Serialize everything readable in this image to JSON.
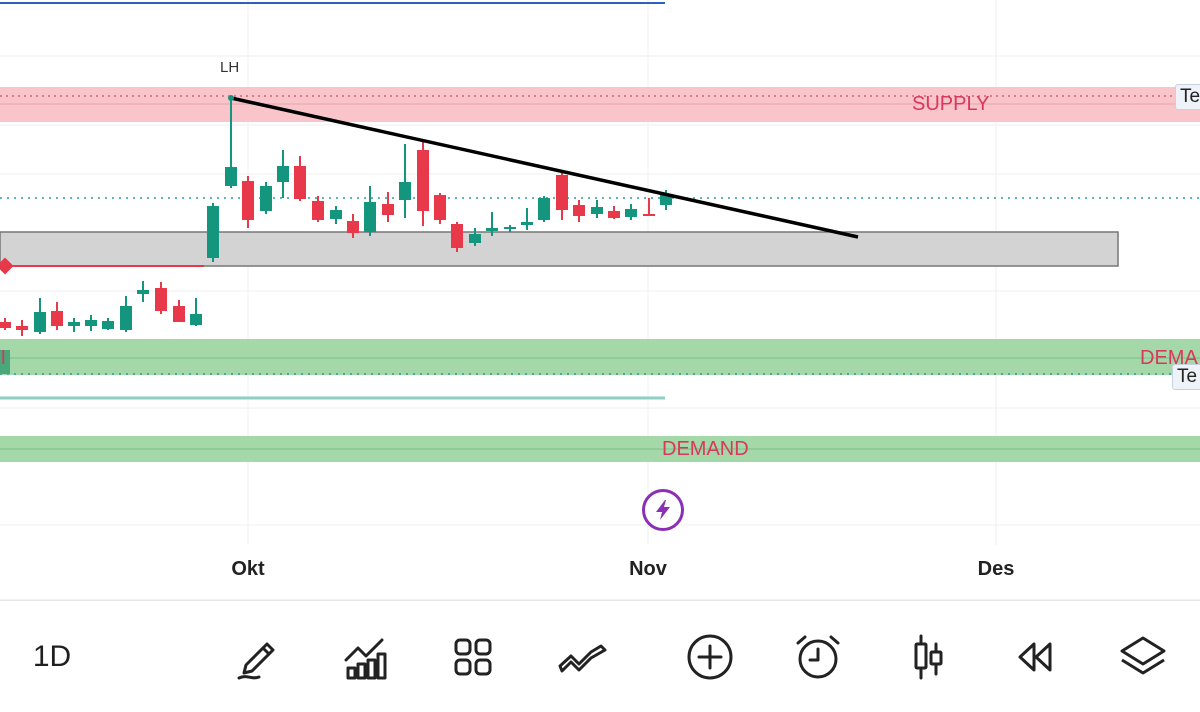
{
  "chart": {
    "pivot_label": "LH",
    "zone_labels": {
      "supply": "SUPPLY",
      "demand_upper": "DEMA",
      "demand_lower": "DEMAND",
      "left_clip": "DI"
    },
    "edge_labels": {
      "top": "Te",
      "bottom": "Te"
    },
    "x_ticks": [
      "Okt",
      "Nov",
      "Des"
    ],
    "colors": {
      "bull": "#14967e",
      "bear": "#e8394a",
      "supply_zone": "#f9c5cb",
      "demand_zone": "#a4d8a8",
      "consolidation_zone": "#d3d3d3",
      "trendline": "#000000",
      "dotted_level": "#2a9d8f",
      "zone_text": "#d9385d"
    }
  },
  "flash_icon": "lightning-icon",
  "toolbar": {
    "interval": "1D",
    "items": [
      "pencil-icon",
      "indicators-icon",
      "grid-icon",
      "chart-type-icon",
      "add-circle-icon",
      "alarm-clock-icon",
      "candlestick-icon",
      "rewind-icon",
      "layers-icon"
    ]
  }
}
